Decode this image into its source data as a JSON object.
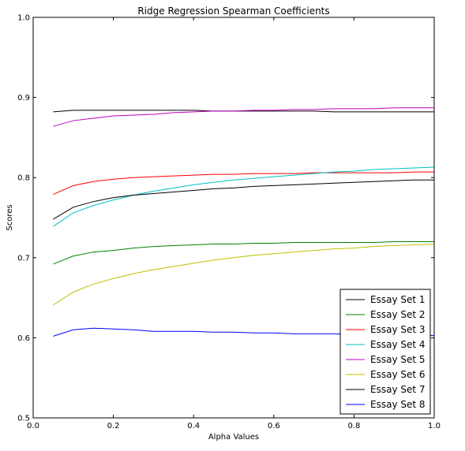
{
  "chart_data": {
    "type": "line",
    "title": "Ridge Regression Spearman Coefficients",
    "xlabel": "Alpha Values",
    "ylabel": "Scores",
    "xlim": [
      0.0,
      1.0
    ],
    "ylim": [
      0.5,
      1.0
    ],
    "xticks": [
      "0.0",
      "0.2",
      "0.4",
      "0.6",
      "0.8",
      "1.0"
    ],
    "yticks": [
      "0.5",
      "0.6",
      "0.7",
      "0.8",
      "0.9",
      "1.0"
    ],
    "grid": false,
    "legend_position": "lower-right",
    "x": [
      0.05,
      0.1,
      0.15,
      0.2,
      0.25,
      0.3,
      0.35,
      0.4,
      0.45,
      0.5,
      0.55,
      0.6,
      0.65,
      0.7,
      0.75,
      0.8,
      0.85,
      0.9,
      0.95,
      1.0
    ],
    "series": [
      {
        "name": "Essay Set 1",
        "color": "#000000",
        "values": [
          0.882,
          0.884,
          0.884,
          0.884,
          0.884,
          0.884,
          0.884,
          0.884,
          0.883,
          0.883,
          0.883,
          0.883,
          0.883,
          0.883,
          0.882,
          0.882,
          0.882,
          0.882,
          0.882,
          0.882
        ]
      },
      {
        "name": "Essay Set 2",
        "color": "#008000",
        "values": [
          0.692,
          0.702,
          0.707,
          0.709,
          0.712,
          0.714,
          0.715,
          0.716,
          0.717,
          0.717,
          0.718,
          0.718,
          0.719,
          0.719,
          0.719,
          0.719,
          0.719,
          0.72,
          0.72,
          0.72
        ]
      },
      {
        "name": "Essay Set 3",
        "color": "#ff0000",
        "values": [
          0.779,
          0.79,
          0.795,
          0.798,
          0.8,
          0.801,
          0.802,
          0.803,
          0.804,
          0.804,
          0.805,
          0.805,
          0.805,
          0.806,
          0.806,
          0.806,
          0.806,
          0.806,
          0.807,
          0.807
        ]
      },
      {
        "name": "Essay Set 4",
        "color": "#00bfbf",
        "values": [
          0.739,
          0.756,
          0.765,
          0.772,
          0.778,
          0.783,
          0.787,
          0.791,
          0.794,
          0.797,
          0.799,
          0.801,
          0.803,
          0.805,
          0.807,
          0.808,
          0.81,
          0.811,
          0.812,
          0.813
        ]
      },
      {
        "name": "Essay Set 5",
        "color": "#bf00bf",
        "values": [
          0.864,
          0.871,
          0.874,
          0.877,
          0.878,
          0.879,
          0.881,
          0.882,
          0.883,
          0.883,
          0.884,
          0.884,
          0.885,
          0.885,
          0.886,
          0.886,
          0.886,
          0.887,
          0.887,
          0.887
        ]
      },
      {
        "name": "Essay Set 6",
        "color": "#bfbf00",
        "values": [
          0.641,
          0.657,
          0.667,
          0.674,
          0.68,
          0.685,
          0.689,
          0.693,
          0.697,
          0.7,
          0.703,
          0.705,
          0.707,
          0.709,
          0.711,
          0.712,
          0.714,
          0.715,
          0.716,
          0.717
        ]
      },
      {
        "name": "Essay Set 7",
        "color": "#000000",
        "values": [
          0.748,
          0.763,
          0.77,
          0.775,
          0.778,
          0.78,
          0.782,
          0.784,
          0.786,
          0.787,
          0.789,
          0.79,
          0.791,
          0.792,
          0.793,
          0.794,
          0.795,
          0.796,
          0.797,
          0.797
        ]
      },
      {
        "name": "Essay Set 8",
        "color": "#0000ff",
        "values": [
          0.602,
          0.61,
          0.612,
          0.611,
          0.61,
          0.608,
          0.608,
          0.608,
          0.607,
          0.607,
          0.606,
          0.606,
          0.605,
          0.605,
          0.605,
          0.604,
          0.604,
          0.604,
          0.603,
          0.603
        ]
      }
    ]
  }
}
